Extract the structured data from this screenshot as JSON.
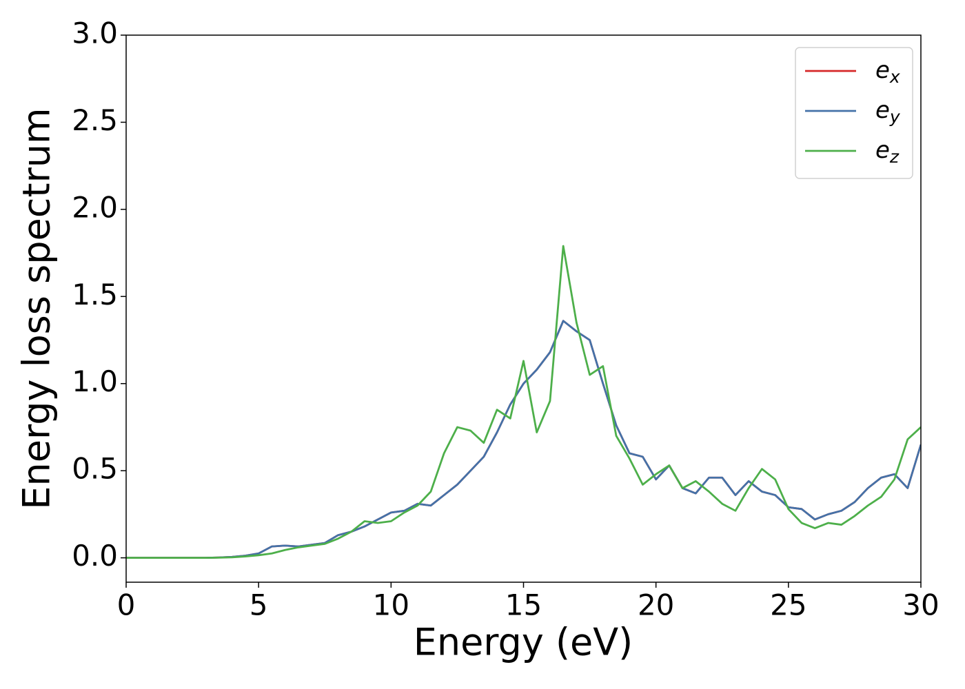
{
  "chart_data": {
    "type": "line",
    "xlabel": "Energy (eV)",
    "ylabel": "Energy loss spectrum",
    "x": [
      0,
      0.5,
      1,
      1.5,
      2,
      2.5,
      3,
      3.5,
      4,
      4.5,
      5,
      5.5,
      6,
      6.5,
      7,
      7.5,
      8,
      8.5,
      9,
      9.5,
      10,
      10.5,
      11,
      11.5,
      12,
      12.5,
      13,
      13.5,
      14,
      14.5,
      15,
      15.5,
      16,
      16.5,
      17,
      17.5,
      18,
      18.5,
      19,
      19.5,
      20,
      20.5,
      21,
      21.5,
      22,
      22.5,
      23,
      23.5,
      24,
      24.5,
      25,
      25.5,
      26,
      26.5,
      27,
      27.5,
      28,
      28.5,
      29,
      29.5,
      30
    ],
    "series": [
      {
        "name": "ex",
        "color": "#d62728",
        "values": [
          0,
          0,
          0,
          0,
          0,
          0,
          0,
          0.002,
          0.005,
          0.012,
          0.025,
          0.065,
          0.07,
          0.065,
          0.075,
          0.085,
          0.13,
          0.15,
          0.18,
          0.22,
          0.26,
          0.27,
          0.31,
          0.3,
          0.36,
          0.42,
          0.5,
          0.58,
          0.72,
          0.88,
          1.0,
          1.08,
          1.18,
          1.36,
          1.3,
          1.25,
          1.0,
          0.76,
          0.6,
          0.58,
          0.45,
          0.53,
          0.4,
          0.37,
          0.46,
          0.46,
          0.36,
          0.44,
          0.38,
          0.36,
          0.29,
          0.28,
          0.22,
          0.25,
          0.27,
          0.32,
          0.4,
          0.46,
          0.48,
          0.4,
          0.65
        ]
      },
      {
        "name": "ey",
        "color": "#4472a8",
        "values": [
          0,
          0,
          0,
          0,
          0,
          0,
          0,
          0.002,
          0.005,
          0.012,
          0.025,
          0.065,
          0.07,
          0.065,
          0.075,
          0.085,
          0.13,
          0.15,
          0.18,
          0.22,
          0.26,
          0.27,
          0.31,
          0.3,
          0.36,
          0.42,
          0.5,
          0.58,
          0.72,
          0.88,
          1.0,
          1.08,
          1.18,
          1.36,
          1.3,
          1.25,
          1.0,
          0.76,
          0.6,
          0.58,
          0.45,
          0.53,
          0.4,
          0.37,
          0.46,
          0.46,
          0.36,
          0.44,
          0.38,
          0.36,
          0.29,
          0.28,
          0.22,
          0.25,
          0.27,
          0.32,
          0.4,
          0.46,
          0.48,
          0.4,
          0.65
        ]
      },
      {
        "name": "ez",
        "color": "#4daf4a",
        "values": [
          0,
          0,
          0,
          0,
          0,
          0,
          0,
          0.001,
          0.003,
          0.008,
          0.015,
          0.025,
          0.045,
          0.06,
          0.07,
          0.08,
          0.11,
          0.15,
          0.21,
          0.2,
          0.21,
          0.26,
          0.3,
          0.38,
          0.6,
          0.75,
          0.73,
          0.66,
          0.85,
          0.8,
          1.13,
          0.72,
          0.9,
          1.79,
          1.35,
          1.05,
          1.1,
          0.7,
          0.57,
          0.42,
          0.48,
          0.53,
          0.4,
          0.44,
          0.38,
          0.31,
          0.27,
          0.4,
          0.51,
          0.45,
          0.28,
          0.2,
          0.17,
          0.2,
          0.19,
          0.24,
          0.3,
          0.35,
          0.45,
          0.68,
          0.75
        ]
      }
    ],
    "xlim": [
      0,
      30
    ],
    "xticks": [
      0,
      5,
      10,
      15,
      20,
      25,
      30
    ],
    "ylim": [
      -0.14,
      3.0
    ],
    "yticks": [
      {
        "value": 0,
        "label": "0.0"
      },
      {
        "value": 0.5,
        "label": "0.5"
      },
      {
        "value": 1,
        "label": "1.0"
      },
      {
        "value": 1.5,
        "label": "1.5"
      },
      {
        "value": 2,
        "label": "2.0"
      },
      {
        "value": 2.5,
        "label": "2.5"
      },
      {
        "value": 3,
        "label": "3.0"
      }
    ],
    "legend": "upper right",
    "grid": false
  }
}
